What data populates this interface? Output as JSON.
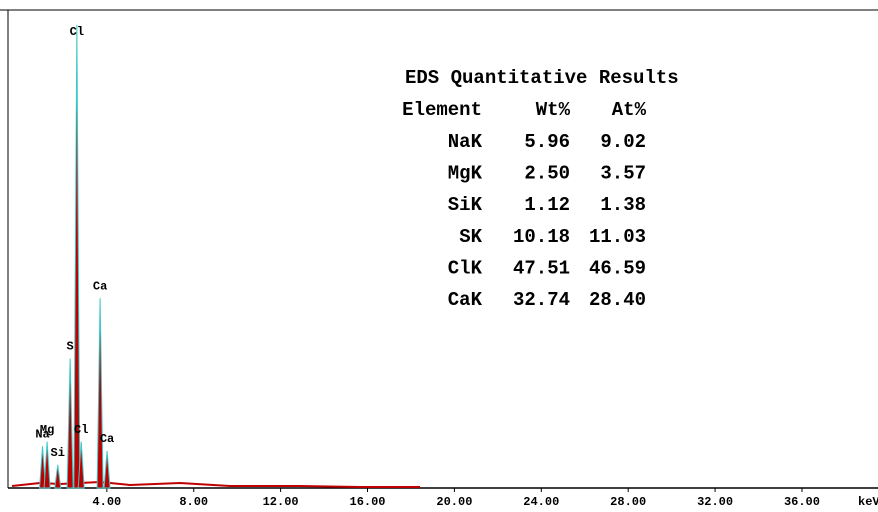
{
  "chart_data": {
    "type": "spectrum",
    "xlabel": "keV",
    "xlim": [
      -0.55,
      39.5
    ],
    "ylim": [
      0,
      100
    ],
    "xticks": [
      {
        "value": 4,
        "label": "4.00"
      },
      {
        "value": 8,
        "label": "8.00"
      },
      {
        "value": 12,
        "label": "12.00"
      },
      {
        "value": 16,
        "label": "16.00"
      },
      {
        "value": 20,
        "label": "20.00"
      },
      {
        "value": 24,
        "label": "24.00"
      },
      {
        "value": 28,
        "label": "28.00"
      },
      {
        "value": 32,
        "label": "32.00"
      },
      {
        "value": 36,
        "label": "36.00"
      }
    ],
    "series": [
      {
        "color": "#c00000",
        "outline": "#40c8c8",
        "x": [
          1.04,
          1.25,
          1.74,
          2.31,
          2.62,
          2.82,
          3.69,
          4.01
        ],
        "values": [
          9,
          10,
          5,
          28,
          100,
          10,
          41,
          8
        ],
        "peak_labels": [
          "Na",
          "Mg",
          "Si",
          "S",
          "Cl",
          "Cl",
          "Ca",
          "Ca"
        ]
      }
    ],
    "results": {
      "title": "EDS Quantitative Results",
      "columns": [
        "Element",
        "Wt%",
        "At%"
      ],
      "rows": [
        [
          "NaK",
          "5.96",
          "9.02"
        ],
        [
          "MgK",
          "2.50",
          "3.57"
        ],
        [
          "SiK",
          "1.12",
          "1.38"
        ],
        [
          "SK",
          "10.18",
          "11.03"
        ],
        [
          "ClK",
          "47.51",
          "46.59"
        ],
        [
          "CaK",
          "32.74",
          "28.40"
        ]
      ]
    }
  }
}
